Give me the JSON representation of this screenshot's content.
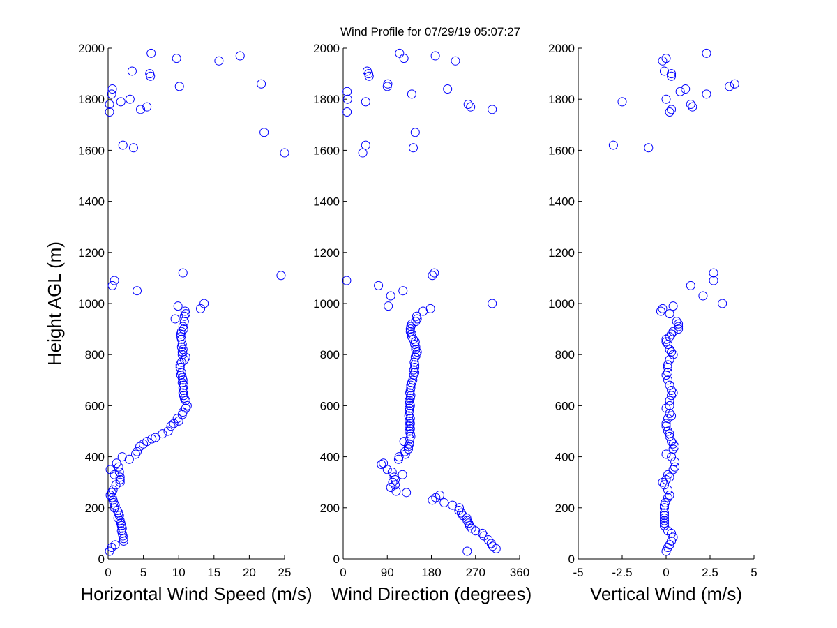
{
  "title": "Wind Profile for  07/29/19 05:07:27",
  "ylabel": "Height AGL (m)",
  "colors": {
    "marker": "#0000ff",
    "axis": "#000000"
  },
  "chart_data": [
    {
      "type": "scatter",
      "xlabel": "Horizontal Wind Speed (m/s)",
      "xlim": [
        0,
        25
      ],
      "xticks": [
        0,
        5,
        10,
        15,
        20,
        25
      ],
      "xtick_labels": [
        "0",
        "5",
        "10",
        "15",
        "20",
        "25"
      ],
      "ylim": [
        0,
        2000
      ],
      "yticks": [
        0,
        200,
        400,
        600,
        800,
        1000,
        1200,
        1400,
        1600,
        1800,
        2000
      ],
      "ytick_labels": [
        "0",
        "200",
        "400",
        "600",
        "800",
        "1000",
        "1200",
        "1400",
        "1600",
        "1800",
        "2000"
      ],
      "points": [
        [
          0.2,
          30
        ],
        [
          0.5,
          45
        ],
        [
          1.0,
          55
        ],
        [
          2.2,
          70
        ],
        [
          2.2,
          80
        ],
        [
          2.1,
          90
        ],
        [
          2.0,
          100
        ],
        [
          1.9,
          110
        ],
        [
          2.0,
          120
        ],
        [
          1.9,
          130
        ],
        [
          1.8,
          140
        ],
        [
          1.7,
          150
        ],
        [
          1.4,
          160
        ],
        [
          1.6,
          170
        ],
        [
          1.5,
          180
        ],
        [
          1.3,
          190
        ],
        [
          0.9,
          200
        ],
        [
          1.0,
          210
        ],
        [
          0.8,
          220
        ],
        [
          0.7,
          230
        ],
        [
          0.6,
          240
        ],
        [
          0.3,
          250
        ],
        [
          0.5,
          260
        ],
        [
          0.7,
          270
        ],
        [
          1.1,
          290
        ],
        [
          1.7,
          300
        ],
        [
          1.7,
          310
        ],
        [
          1.7,
          320
        ],
        [
          0.9,
          330
        ],
        [
          1.6,
          340
        ],
        [
          0.3,
          350
        ],
        [
          1.5,
          360
        ],
        [
          1.2,
          375
        ],
        [
          2.0,
          400
        ],
        [
          3.0,
          390
        ],
        [
          3.9,
          410
        ],
        [
          4.1,
          420
        ],
        [
          4.5,
          440
        ],
        [
          5.0,
          450
        ],
        [
          5.5,
          460
        ],
        [
          6.2,
          470
        ],
        [
          6.7,
          475
        ],
        [
          7.7,
          490
        ],
        [
          8.5,
          500
        ],
        [
          8.9,
          520
        ],
        [
          9.3,
          530
        ],
        [
          10.0,
          540
        ],
        [
          9.8,
          550
        ],
        [
          10.5,
          565
        ],
        [
          10.6,
          575
        ],
        [
          11.0,
          590
        ],
        [
          11.2,
          600
        ],
        [
          11.0,
          620
        ],
        [
          10.8,
          630
        ],
        [
          10.7,
          640
        ],
        [
          10.6,
          650
        ],
        [
          10.7,
          660
        ],
        [
          10.6,
          670
        ],
        [
          10.7,
          680
        ],
        [
          10.5,
          690
        ],
        [
          10.6,
          700
        ],
        [
          10.5,
          710
        ],
        [
          10.3,
          720
        ],
        [
          10.4,
          730
        ],
        [
          10.2,
          750
        ],
        [
          10.2,
          760
        ],
        [
          10.4,
          770
        ],
        [
          10.8,
          780
        ],
        [
          11.0,
          790
        ],
        [
          10.5,
          800
        ],
        [
          10.5,
          810
        ],
        [
          10.6,
          820
        ],
        [
          10.4,
          830
        ],
        [
          10.5,
          840
        ],
        [
          10.4,
          860
        ],
        [
          10.3,
          870
        ],
        [
          10.3,
          880
        ],
        [
          10.4,
          890
        ],
        [
          10.7,
          900
        ],
        [
          10.6,
          910
        ],
        [
          10.8,
          930
        ],
        [
          10.8,
          950
        ],
        [
          11.0,
          960
        ],
        [
          10.9,
          970
        ],
        [
          9.5,
          940
        ],
        [
          9.9,
          990
        ],
        [
          13.1,
          980
        ],
        [
          13.6,
          1000
        ],
        [
          0.6,
          1070
        ],
        [
          0.9,
          1090
        ],
        [
          4.1,
          1050
        ],
        [
          10.6,
          1120
        ],
        [
          24.5,
          1110
        ],
        [
          2.1,
          1620
        ],
        [
          3.6,
          1610
        ],
        [
          25.0,
          1590
        ],
        [
          22.1,
          1670
        ],
        [
          0.2,
          1750
        ],
        [
          0.2,
          1780
        ],
        [
          1.8,
          1790
        ],
        [
          3.1,
          1800
        ],
        [
          4.6,
          1760
        ],
        [
          5.5,
          1770
        ],
        [
          0.5,
          1820
        ],
        [
          0.6,
          1840
        ],
        [
          10.1,
          1850
        ],
        [
          21.7,
          1860
        ],
        [
          3.4,
          1910
        ],
        [
          5.9,
          1900
        ],
        [
          6.0,
          1890
        ],
        [
          15.7,
          1950
        ],
        [
          9.7,
          1960
        ],
        [
          6.1,
          1980
        ],
        [
          18.7,
          1970
        ]
      ]
    },
    {
      "type": "scatter",
      "xlabel": "Wind Direction (degrees)",
      "xlim": [
        0,
        360
      ],
      "xticks": [
        0,
        90,
        180,
        270,
        360
      ],
      "xtick_labels": [
        "0",
        "90",
        "180",
        "270",
        "360"
      ],
      "ylim": [
        0,
        2000
      ],
      "yticks": [
        0,
        200,
        400,
        600,
        800,
        1000,
        1200,
        1400,
        1600,
        1800,
        2000
      ],
      "ytick_labels": [
        "0",
        "200",
        "400",
        "600",
        "800",
        "1000",
        "1200",
        "1400",
        "1600",
        "1800",
        "2000"
      ],
      "points": [
        [
          253,
          30
        ],
        [
          312,
          40
        ],
        [
          305,
          50
        ],
        [
          302,
          60
        ],
        [
          296,
          75
        ],
        [
          287,
          90
        ],
        [
          284,
          100
        ],
        [
          270,
          110
        ],
        [
          262,
          120
        ],
        [
          258,
          130
        ],
        [
          256,
          140
        ],
        [
          253,
          150
        ],
        [
          252,
          160
        ],
        [
          244,
          170
        ],
        [
          241,
          180
        ],
        [
          236,
          190
        ],
        [
          237,
          200
        ],
        [
          223,
          210
        ],
        [
          206,
          220
        ],
        [
          182,
          230
        ],
        [
          189,
          240
        ],
        [
          197,
          250
        ],
        [
          129,
          260
        ],
        [
          108,
          265
        ],
        [
          97,
          280
        ],
        [
          106,
          290
        ],
        [
          101,
          300
        ],
        [
          106,
          310
        ],
        [
          104,
          320
        ],
        [
          121,
          330
        ],
        [
          100,
          340
        ],
        [
          90,
          350
        ],
        [
          78,
          370
        ],
        [
          82,
          375
        ],
        [
          113,
          390
        ],
        [
          114,
          400
        ],
        [
          127,
          410
        ],
        [
          126,
          420
        ],
        [
          133,
          430
        ],
        [
          133,
          440
        ],
        [
          135,
          450
        ],
        [
          124,
          460
        ],
        [
          136,
          470
        ],
        [
          138,
          480
        ],
        [
          137,
          490
        ],
        [
          135,
          500
        ],
        [
          137,
          510
        ],
        [
          135,
          520
        ],
        [
          137,
          530
        ],
        [
          135,
          540
        ],
        [
          137,
          550
        ],
        [
          134,
          560
        ],
        [
          136,
          570
        ],
        [
          135,
          580
        ],
        [
          135,
          590
        ],
        [
          137,
          600
        ],
        [
          136,
          610
        ],
        [
          135,
          620
        ],
        [
          137,
          630
        ],
        [
          138,
          640
        ],
        [
          136,
          650
        ],
        [
          137,
          660
        ],
        [
          138,
          670
        ],
        [
          138,
          680
        ],
        [
          140,
          690
        ],
        [
          142,
          700
        ],
        [
          144,
          720
        ],
        [
          146,
          730
        ],
        [
          144,
          740
        ],
        [
          146,
          750
        ],
        [
          146,
          760
        ],
        [
          145,
          770
        ],
        [
          147,
          790
        ],
        [
          150,
          800
        ],
        [
          151,
          810
        ],
        [
          148,
          820
        ],
        [
          148,
          830
        ],
        [
          146,
          840
        ],
        [
          147,
          850
        ],
        [
          143,
          860
        ],
        [
          140,
          870
        ],
        [
          140,
          880
        ],
        [
          137,
          890
        ],
        [
          137,
          900
        ],
        [
          138,
          910
        ],
        [
          140,
          920
        ],
        [
          148,
          930
        ],
        [
          151,
          940
        ],
        [
          150,
          950
        ],
        [
          163,
          970
        ],
        [
          178,
          980
        ],
        [
          92,
          990
        ],
        [
          97,
          1030
        ],
        [
          304,
          1000
        ],
        [
          72,
          1070
        ],
        [
          122,
          1050
        ],
        [
          7,
          1090
        ],
        [
          182,
          1110
        ],
        [
          186,
          1120
        ],
        [
          40,
          1590
        ],
        [
          46,
          1620
        ],
        [
          143,
          1610
        ],
        [
          147,
          1670
        ],
        [
          8,
          1750
        ],
        [
          9,
          1800
        ],
        [
          46,
          1790
        ],
        [
          140,
          1820
        ],
        [
          255,
          1780
        ],
        [
          260,
          1770
        ],
        [
          304,
          1760
        ],
        [
          90,
          1850
        ],
        [
          91,
          1860
        ],
        [
          213,
          1840
        ],
        [
          8,
          1830
        ],
        [
          49,
          1910
        ],
        [
          52,
          1900
        ],
        [
          53,
          1890
        ],
        [
          124,
          1960
        ],
        [
          115,
          1980
        ],
        [
          229,
          1950
        ],
        [
          188,
          1970
        ]
      ]
    },
    {
      "type": "scatter",
      "xlabel": "Vertical Wind (m/s)",
      "xlim": [
        -5,
        5
      ],
      "xticks": [
        -5,
        -2.5,
        0,
        2.5,
        5
      ],
      "xtick_labels": [
        "-5",
        "-2.5",
        "0",
        "2.5",
        "5"
      ],
      "ylim": [
        0,
        2000
      ],
      "yticks": [
        0,
        200,
        400,
        600,
        800,
        1000,
        1200,
        1400,
        1600,
        1800,
        2000
      ],
      "ytick_labels": [
        "0",
        "200",
        "400",
        "600",
        "800",
        "1000",
        "1200",
        "1400",
        "1600",
        "1800",
        "2000"
      ],
      "points": [
        [
          0.0,
          30
        ],
        [
          0.1,
          45
        ],
        [
          0.2,
          55
        ],
        [
          0.3,
          70
        ],
        [
          0.4,
          85
        ],
        [
          0.3,
          100
        ],
        [
          0.1,
          110
        ],
        [
          -0.1,
          130
        ],
        [
          -0.1,
          140
        ],
        [
          -0.1,
          150
        ],
        [
          -0.1,
          160
        ],
        [
          -0.1,
          170
        ],
        [
          -0.1,
          180
        ],
        [
          -0.1,
          200
        ],
        [
          -0.1,
          210
        ],
        [
          -0.05,
          220
        ],
        [
          0.1,
          240
        ],
        [
          0.2,
          250
        ],
        [
          0.1,
          270
        ],
        [
          -0.1,
          290
        ],
        [
          -0.2,
          300
        ],
        [
          0.0,
          310
        ],
        [
          0.2,
          320
        ],
        [
          0.1,
          330
        ],
        [
          0.4,
          350
        ],
        [
          0.5,
          360
        ],
        [
          0.5,
          380
        ],
        [
          0.3,
          400
        ],
        [
          0.0,
          410
        ],
        [
          0.4,
          430
        ],
        [
          0.5,
          440
        ],
        [
          0.4,
          450
        ],
        [
          0.3,
          460
        ],
        [
          0.2,
          480
        ],
        [
          0.2,
          490
        ],
        [
          0.1,
          500
        ],
        [
          0.0,
          520
        ],
        [
          0.0,
          530
        ],
        [
          0.1,
          550
        ],
        [
          0.3,
          560
        ],
        [
          0.2,
          570
        ],
        [
          0.0,
          590
        ],
        [
          0.2,
          600
        ],
        [
          0.2,
          620
        ],
        [
          0.3,
          640
        ],
        [
          0.4,
          650
        ],
        [
          0.3,
          660
        ],
        [
          0.2,
          680
        ],
        [
          0.1,
          700
        ],
        [
          0.0,
          720
        ],
        [
          0.1,
          730
        ],
        [
          0.1,
          750
        ],
        [
          0.1,
          760
        ],
        [
          0.2,
          780
        ],
        [
          0.4,
          800
        ],
        [
          0.3,
          810
        ],
        [
          0.2,
          820
        ],
        [
          0.1,
          840
        ],
        [
          0.0,
          850
        ],
        [
          0.0,
          860
        ],
        [
          0.2,
          870
        ],
        [
          0.3,
          880
        ],
        [
          0.4,
          890
        ],
        [
          0.7,
          900
        ],
        [
          0.7,
          910
        ],
        [
          0.7,
          920
        ],
        [
          0.6,
          930
        ],
        [
          0.2,
          960
        ],
        [
          -0.2,
          980
        ],
        [
          -0.3,
          970
        ],
        [
          0.4,
          990
        ],
        [
          3.2,
          1000
        ],
        [
          2.1,
          1030
        ],
        [
          1.4,
          1070
        ],
        [
          2.7,
          1090
        ],
        [
          2.7,
          1120
        ],
        [
          -3.0,
          1620
        ],
        [
          -1.0,
          1610
        ],
        [
          -2.5,
          1790
        ],
        [
          0.3,
          1760
        ],
        [
          0.2,
          1750
        ],
        [
          1.4,
          1780
        ],
        [
          1.5,
          1770
        ],
        [
          0.0,
          1800
        ],
        [
          0.8,
          1830
        ],
        [
          1.1,
          1840
        ],
        [
          2.3,
          1820
        ],
        [
          3.6,
          1850
        ],
        [
          3.9,
          1860
        ],
        [
          0.3,
          1890
        ],
        [
          0.3,
          1900
        ],
        [
          -0.1,
          1910
        ],
        [
          -0.2,
          1950
        ],
        [
          0.0,
          1960
        ],
        [
          2.3,
          1980
        ]
      ]
    }
  ]
}
